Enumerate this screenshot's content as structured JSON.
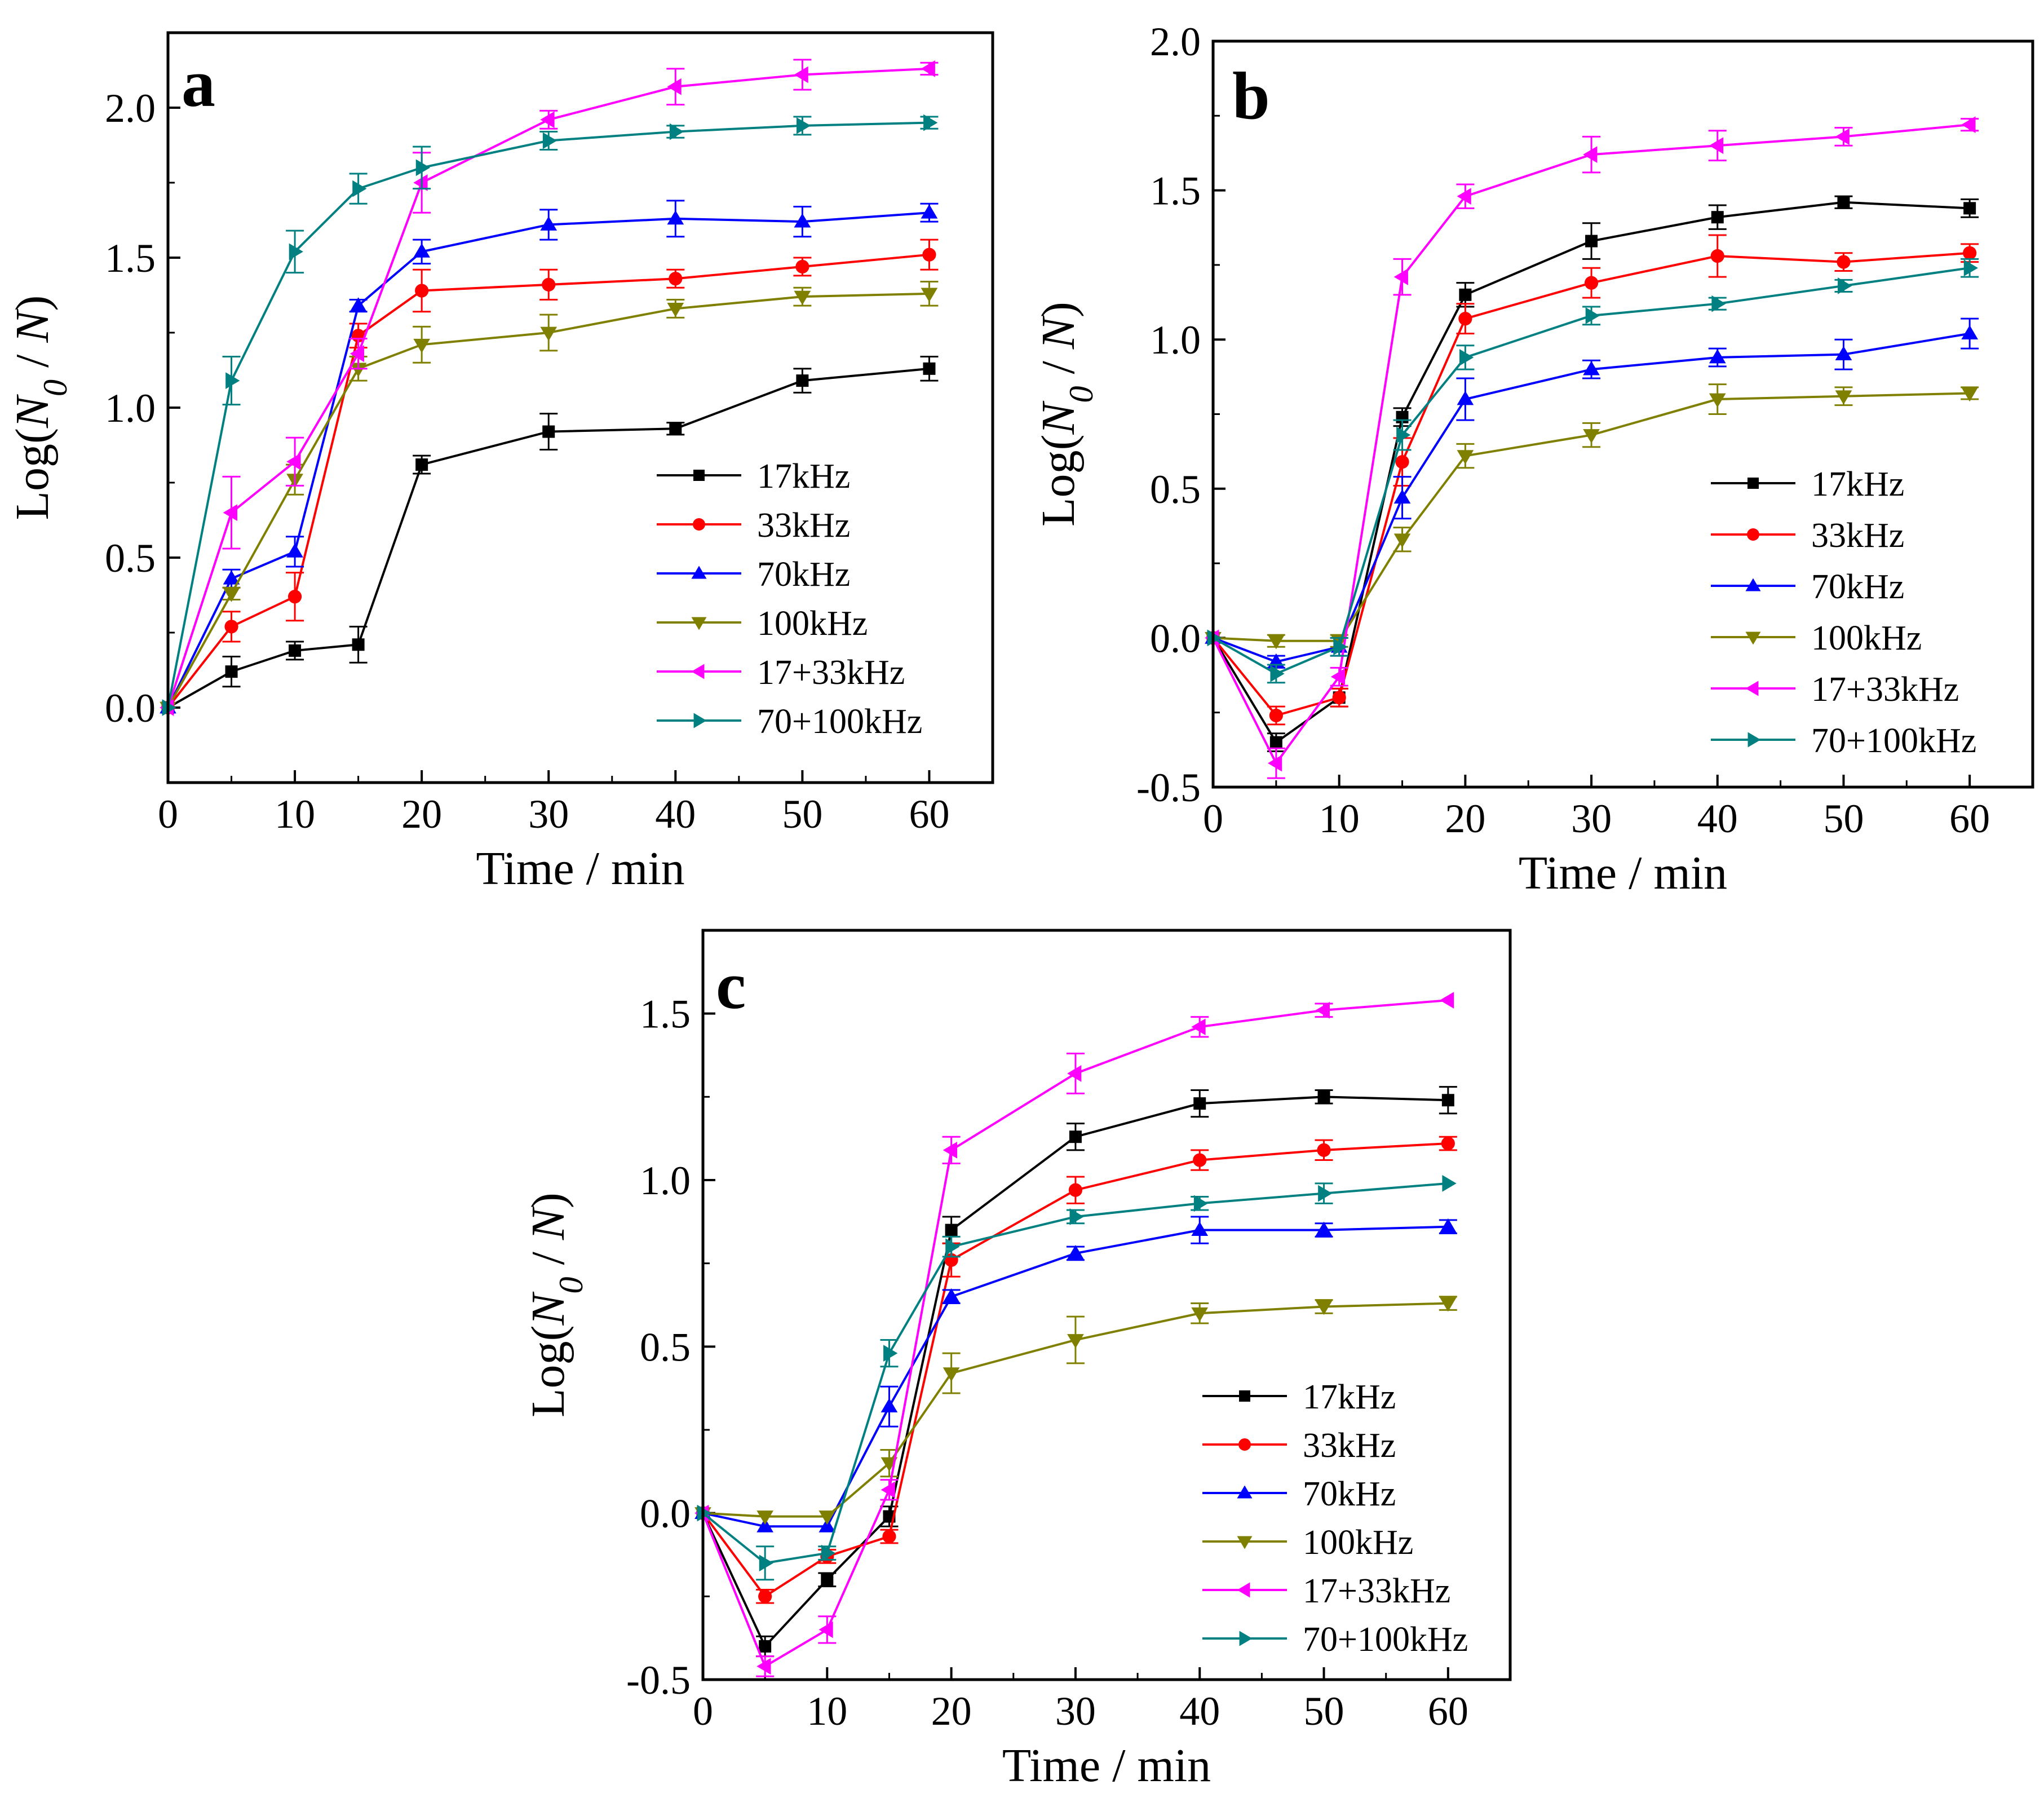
{
  "figure": {
    "colors": {
      "17kHz": "#000000",
      "33kHz": "#ff0000",
      "70kHz": "#0000ff",
      "100kHz": "#808000",
      "17+33kHz": "#ff00ff",
      "70+100kHz": "#008080"
    }
  },
  "chart_data": [
    {
      "type": "line",
      "panel_label": "a",
      "xlabel": "Time / min",
      "ylabel_prefix": "Log(",
      "ylabel_sym": "N",
      "ylabel_sub": "0",
      "ylabel_mid": " / ",
      "ylabel_sym2": "N",
      "ylabel_suffix": ")",
      "xlim": [
        0,
        65
      ],
      "ylim": [
        -0.25,
        2.25
      ],
      "xticks": [
        0,
        10,
        20,
        30,
        40,
        50,
        60
      ],
      "xtick_labels": [
        "0",
        "10",
        "20",
        "30",
        "40",
        "50",
        "60"
      ],
      "yticks": [
        0.0,
        0.5,
        1.0,
        1.5,
        2.0
      ],
      "ytick_labels": [
        "0.0",
        "0.5",
        "1.0",
        "1.5",
        "2.0"
      ],
      "legend_position": "lower-right",
      "x": [
        0,
        5,
        10,
        15,
        20,
        30,
        40,
        50,
        60
      ],
      "series": [
        {
          "name": "17kHz",
          "marker": "square",
          "values": [
            0.0,
            0.12,
            0.19,
            0.21,
            0.81,
            0.92,
            0.93,
            1.09,
            1.13
          ],
          "errors": [
            0.01,
            0.05,
            0.03,
            0.06,
            0.03,
            0.06,
            0.02,
            0.04,
            0.04
          ]
        },
        {
          "name": "33kHz",
          "marker": "circle",
          "values": [
            0.0,
            0.27,
            0.37,
            1.24,
            1.39,
            1.41,
            1.43,
            1.47,
            1.51
          ],
          "errors": [
            0.01,
            0.05,
            0.08,
            0.04,
            0.07,
            0.05,
            0.03,
            0.03,
            0.05
          ]
        },
        {
          "name": "70kHz",
          "marker": "triangle-up",
          "values": [
            0.0,
            0.43,
            0.52,
            1.34,
            1.52,
            1.61,
            1.63,
            1.62,
            1.65
          ],
          "errors": [
            0.01,
            0.03,
            0.05,
            0.02,
            0.04,
            0.05,
            0.06,
            0.05,
            0.03
          ]
        },
        {
          "name": "100kHz",
          "marker": "triangle-down",
          "values": [
            0.0,
            0.38,
            0.76,
            1.13,
            1.21,
            1.25,
            1.33,
            1.37,
            1.38
          ],
          "errors": [
            0.01,
            0.02,
            0.05,
            0.04,
            0.06,
            0.06,
            0.03,
            0.03,
            0.04
          ]
        },
        {
          "name": "17+33kHz",
          "marker": "triangle-left",
          "values": [
            0.0,
            0.65,
            0.82,
            1.18,
            1.75,
            1.96,
            2.07,
            2.11,
            2.13
          ],
          "errors": [
            0.01,
            0.12,
            0.08,
            0.05,
            0.1,
            0.03,
            0.06,
            0.05,
            0.02
          ]
        },
        {
          "name": "70+100kHz",
          "marker": "triangle-right",
          "values": [
            0.0,
            1.09,
            1.52,
            1.73,
            1.8,
            1.89,
            1.92,
            1.94,
            1.95
          ],
          "errors": [
            0.01,
            0.08,
            0.07,
            0.05,
            0.07,
            0.03,
            0.02,
            0.03,
            0.02
          ]
        }
      ]
    },
    {
      "type": "line",
      "panel_label": "b",
      "xlabel": "Time / min",
      "ylabel_prefix": "Log(",
      "ylabel_sym": "N",
      "ylabel_sub": "0",
      "ylabel_mid": " / ",
      "ylabel_sym2": "N",
      "ylabel_suffix": ")",
      "xlim": [
        0,
        65
      ],
      "ylim": [
        -0.5,
        2.0
      ],
      "xticks": [
        0,
        10,
        20,
        30,
        40,
        50,
        60
      ],
      "xtick_labels": [
        "0",
        "10",
        "20",
        "30",
        "40",
        "50",
        "60"
      ],
      "yticks": [
        -0.5,
        0.0,
        0.5,
        1.0,
        1.5,
        2.0
      ],
      "ytick_labels": [
        "-0.5",
        "0.0",
        "0.5",
        "1.0",
        "1.5",
        "2.0"
      ],
      "legend_position": "lower-right",
      "x": [
        0,
        5,
        10,
        15,
        20,
        30,
        40,
        50,
        60
      ],
      "series": [
        {
          "name": "17kHz",
          "marker": "square",
          "values": [
            0.0,
            -0.35,
            -0.2,
            0.74,
            1.15,
            1.33,
            1.41,
            1.46,
            1.44
          ],
          "errors": [
            0.01,
            0.03,
            0.03,
            0.03,
            0.04,
            0.06,
            0.04,
            0.02,
            0.03
          ]
        },
        {
          "name": "33kHz",
          "marker": "circle",
          "values": [
            0.0,
            -0.26,
            -0.2,
            0.59,
            1.07,
            1.19,
            1.28,
            1.26,
            1.29
          ],
          "errors": [
            0.01,
            0.03,
            0.03,
            0.08,
            0.05,
            0.05,
            0.07,
            0.03,
            0.03
          ]
        },
        {
          "name": "70kHz",
          "marker": "triangle-up",
          "values": [
            0.0,
            -0.08,
            -0.03,
            0.47,
            0.8,
            0.9,
            0.94,
            0.95,
            1.02
          ],
          "errors": [
            0.01,
            0.02,
            0.03,
            0.07,
            0.07,
            0.03,
            0.03,
            0.05,
            0.05
          ]
        },
        {
          "name": "100kHz",
          "marker": "triangle-down",
          "values": [
            0.0,
            -0.01,
            -0.01,
            0.33,
            0.61,
            0.68,
            0.8,
            0.81,
            0.82
          ],
          "errors": [
            0.01,
            0.02,
            0.02,
            0.04,
            0.04,
            0.04,
            0.05,
            0.03,
            0.02
          ]
        },
        {
          "name": "17+33kHz",
          "marker": "triangle-left",
          "values": [
            0.0,
            -0.42,
            -0.13,
            1.21,
            1.48,
            1.62,
            1.65,
            1.68,
            1.72
          ],
          "errors": [
            0.01,
            0.05,
            0.03,
            0.06,
            0.04,
            0.06,
            0.05,
            0.03,
            0.02
          ]
        },
        {
          "name": "70+100kHz",
          "marker": "triangle-right",
          "values": [
            0.0,
            -0.12,
            -0.03,
            0.68,
            0.94,
            1.08,
            1.12,
            1.18,
            1.24
          ],
          "errors": [
            0.01,
            0.03,
            0.03,
            0.05,
            0.04,
            0.03,
            0.02,
            0.02,
            0.03
          ]
        }
      ]
    },
    {
      "type": "line",
      "panel_label": "c",
      "xlabel": "Time / min",
      "ylabel_prefix": "Log(",
      "ylabel_sym": "N",
      "ylabel_sub": "0",
      "ylabel_mid": " / ",
      "ylabel_sym2": "N",
      "ylabel_suffix": ")",
      "xlim": [
        0,
        65
      ],
      "ylim": [
        -0.5,
        1.75
      ],
      "xticks": [
        0,
        10,
        20,
        30,
        40,
        50,
        60
      ],
      "xtick_labels": [
        "0",
        "10",
        "20",
        "30",
        "40",
        "50",
        "60"
      ],
      "yticks": [
        -0.5,
        0.0,
        0.5,
        1.0,
        1.5
      ],
      "ytick_labels": [
        "-0.5",
        "0.0",
        "0.5",
        "1.0",
        "1.5"
      ],
      "legend_position": "lower-right",
      "x": [
        0,
        5,
        10,
        15,
        20,
        30,
        40,
        50,
        60
      ],
      "series": [
        {
          "name": "17kHz",
          "marker": "square",
          "values": [
            0.0,
            -0.4,
            -0.2,
            -0.01,
            0.85,
            1.13,
            1.23,
            1.25,
            1.24
          ],
          "errors": [
            0.01,
            0.03,
            0.02,
            0.03,
            0.04,
            0.04,
            0.04,
            0.02,
            0.04
          ]
        },
        {
          "name": "33kHz",
          "marker": "circle",
          "values": [
            0.0,
            -0.25,
            -0.13,
            -0.07,
            0.76,
            0.97,
            1.06,
            1.09,
            1.11
          ],
          "errors": [
            0.01,
            0.02,
            0.02,
            0.02,
            0.05,
            0.04,
            0.03,
            0.03,
            0.02
          ]
        },
        {
          "name": "70kHz",
          "marker": "triangle-up",
          "values": [
            0.0,
            -0.04,
            -0.04,
            0.32,
            0.65,
            0.78,
            0.85,
            0.85,
            0.86
          ],
          "errors": [
            0.01,
            0.01,
            0.01,
            0.06,
            0.02,
            0.02,
            0.04,
            0.02,
            0.02
          ]
        },
        {
          "name": "100kHz",
          "marker": "triangle-down",
          "values": [
            0.0,
            -0.01,
            -0.01,
            0.15,
            0.42,
            0.52,
            0.6,
            0.62,
            0.63
          ],
          "errors": [
            0.01,
            0.01,
            0.01,
            0.04,
            0.06,
            0.07,
            0.03,
            0.02,
            0.02
          ]
        },
        {
          "name": "17+33kHz",
          "marker": "triangle-left",
          "values": [
            0.0,
            -0.46,
            -0.35,
            0.07,
            1.09,
            1.32,
            1.46,
            1.51,
            1.54
          ],
          "errors": [
            0.01,
            0.03,
            0.04,
            0.03,
            0.04,
            0.06,
            0.03,
            0.02,
            0.01
          ]
        },
        {
          "name": "70+100kHz",
          "marker": "triangle-right",
          "values": [
            0.0,
            -0.15,
            -0.12,
            0.48,
            0.8,
            0.89,
            0.93,
            0.96,
            0.99
          ],
          "errors": [
            0.01,
            0.05,
            0.02,
            0.04,
            0.03,
            0.02,
            0.02,
            0.03,
            0.01
          ]
        }
      ]
    }
  ]
}
